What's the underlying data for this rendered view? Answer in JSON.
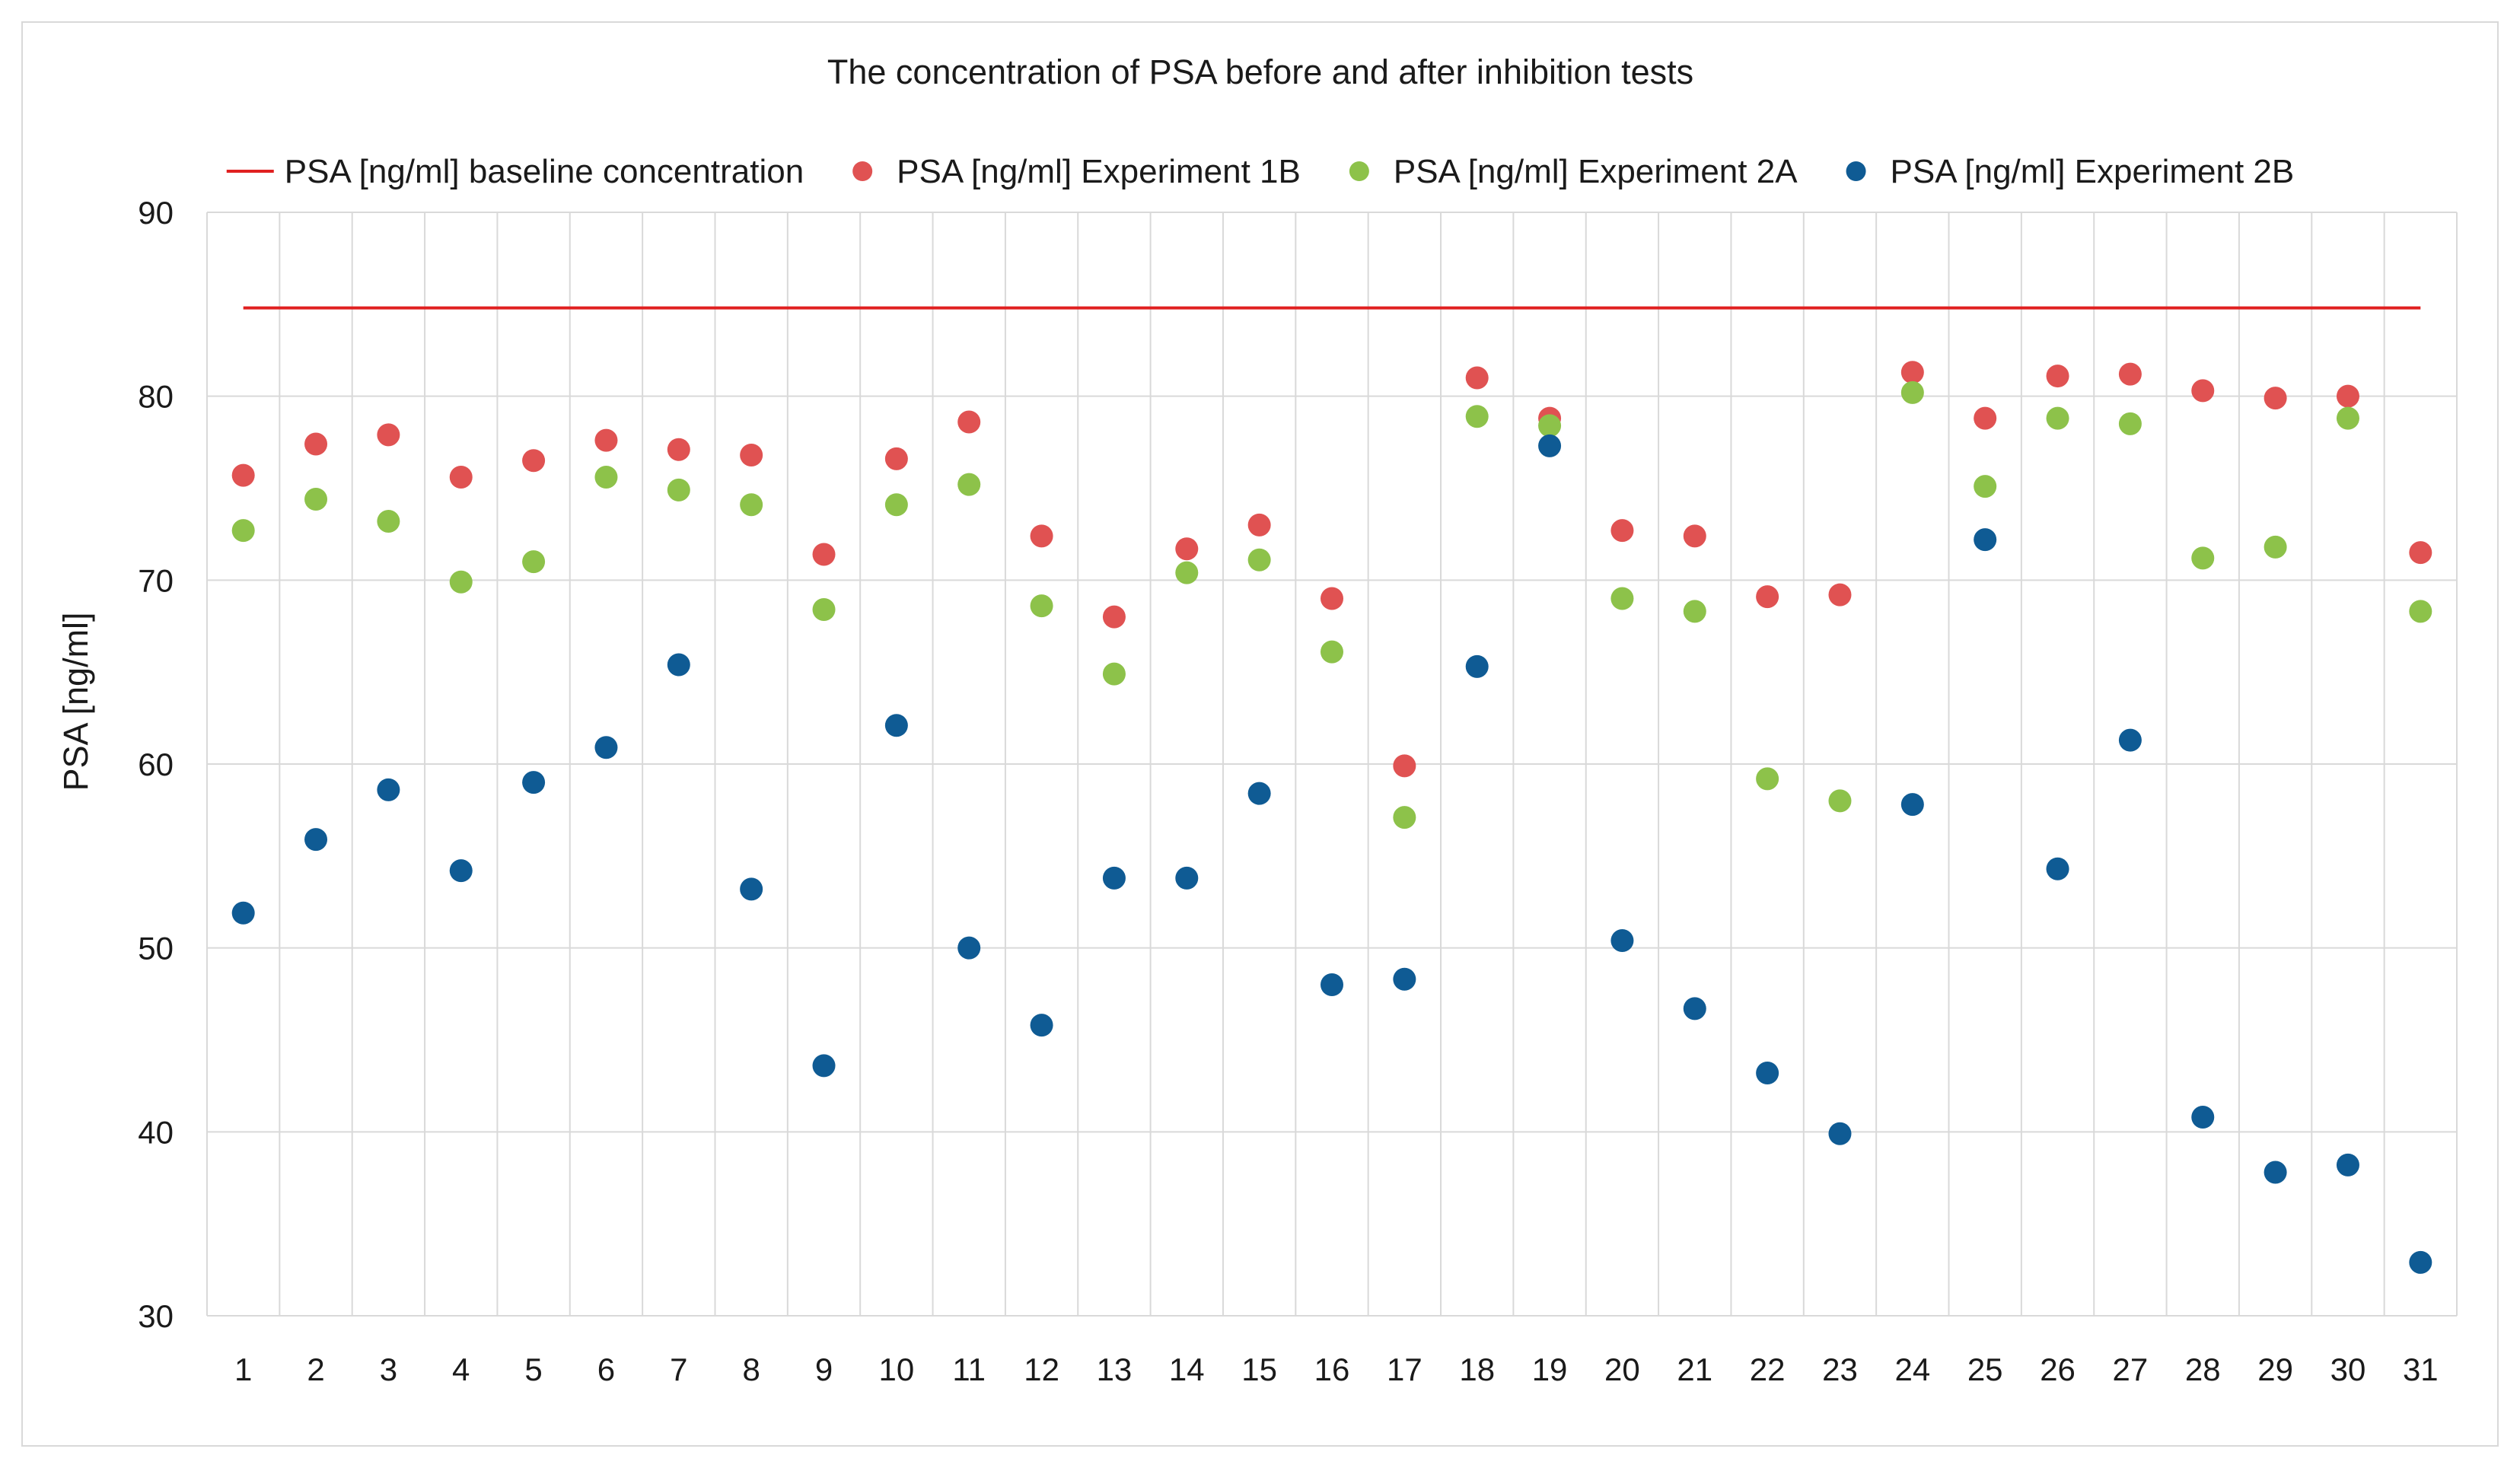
{
  "chart_data": {
    "type": "scatter",
    "title": "The concentration of PSA before and after inhibition tests",
    "xlabel": "",
    "ylabel": "PSA [ng/ml]",
    "ylim": [
      30,
      90
    ],
    "yticks": [
      30,
      40,
      50,
      60,
      70,
      80,
      90
    ],
    "categories": [
      "1",
      "2",
      "3",
      "4",
      "5",
      "6",
      "7",
      "8",
      "9",
      "10",
      "11",
      "12",
      "13",
      "14",
      "15",
      "16",
      "17",
      "18",
      "19",
      "20",
      "21",
      "22",
      "23",
      "24",
      "25",
      "26",
      "27",
      "28",
      "29",
      "30",
      "31"
    ],
    "grid": true,
    "legend_position": "top",
    "series": [
      {
        "name": "PSA [ng/ml] baseline concentration",
        "kind": "line",
        "color": "#e02020",
        "values": [
          84.8,
          84.8,
          84.8,
          84.8,
          84.8,
          84.8,
          84.8,
          84.8,
          84.8,
          84.8,
          84.8,
          84.8,
          84.8,
          84.8,
          84.8,
          84.8,
          84.8,
          84.8,
          84.8,
          84.8,
          84.8,
          84.8,
          84.8,
          84.8,
          84.8,
          84.8,
          84.8,
          84.8,
          84.8,
          84.8,
          84.8
        ]
      },
      {
        "name": "PSA [ng/ml] Experiment 1B",
        "kind": "scatter",
        "color": "#e05252",
        "values": [
          75.7,
          77.4,
          77.9,
          75.6,
          76.5,
          77.6,
          77.1,
          76.8,
          71.4,
          76.6,
          78.6,
          72.4,
          68.0,
          71.7,
          73.0,
          69.0,
          59.9,
          81.0,
          78.8,
          72.7,
          72.4,
          69.1,
          69.2,
          81.3,
          78.8,
          81.1,
          81.2,
          80.3,
          79.9,
          80.0,
          71.5
        ]
      },
      {
        "name": "PSA [ng/ml] Experiment 2A",
        "kind": "scatter",
        "color": "#8dc24a",
        "values": [
          72.7,
          74.4,
          73.2,
          69.9,
          71.0,
          75.6,
          74.9,
          74.1,
          68.4,
          74.1,
          75.2,
          68.6,
          64.9,
          70.4,
          71.1,
          66.1,
          57.1,
          78.9,
          78.4,
          69.0,
          68.3,
          59.2,
          58.0,
          80.2,
          75.1,
          78.8,
          78.5,
          71.2,
          71.8,
          78.8,
          68.3
        ]
      },
      {
        "name": "PSA  [ng/ml] Experiment 2B",
        "kind": "scatter",
        "color": "#0f5b94",
        "values": [
          51.9,
          55.9,
          58.6,
          54.2,
          59.0,
          60.9,
          65.4,
          53.2,
          43.6,
          62.1,
          50.0,
          45.8,
          53.8,
          53.8,
          58.4,
          48.0,
          48.3,
          65.3,
          77.3,
          50.4,
          46.7,
          43.2,
          39.9,
          57.8,
          72.2,
          54.3,
          61.3,
          40.8,
          37.8,
          38.2,
          32.9
        ]
      }
    ]
  }
}
